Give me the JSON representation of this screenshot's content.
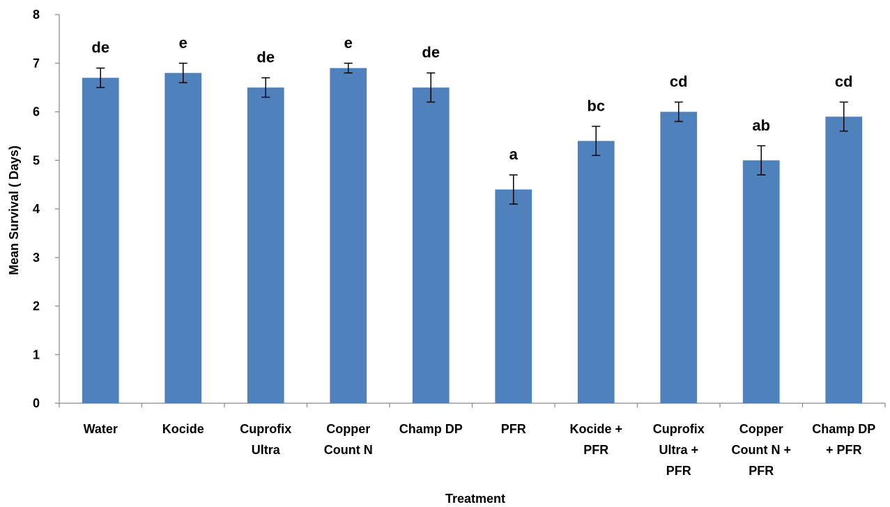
{
  "chart_data": {
    "type": "bar",
    "xlabel": "Treatment",
    "ylabel": "Mean Survival ( Days)",
    "ylim": [
      0,
      8
    ],
    "yticks": [
      0,
      1,
      2,
      3,
      4,
      5,
      6,
      7,
      8
    ],
    "grid": false,
    "bar_color": "#4f81bd",
    "categories": [
      [
        "Water"
      ],
      [
        "Kocide"
      ],
      [
        "Cuprofix",
        "Ultra"
      ],
      [
        "Copper",
        "Count N"
      ],
      [
        "Champ DP"
      ],
      [
        "PFR"
      ],
      [
        "Kocide +",
        "PFR"
      ],
      [
        "Cuprofix",
        "Ultra +",
        "PFR"
      ],
      [
        "Copper",
        "Count N +",
        "PFR"
      ],
      [
        "Champ DP",
        "+ PFR"
      ]
    ],
    "values": [
      6.7,
      6.8,
      6.5,
      6.9,
      6.5,
      4.4,
      5.4,
      6.0,
      5.0,
      5.9
    ],
    "errors": [
      0.2,
      0.2,
      0.2,
      0.1,
      0.3,
      0.3,
      0.3,
      0.2,
      0.3,
      0.3
    ],
    "letters": [
      "de",
      "e",
      "de",
      "e",
      "de",
      "a",
      "bc",
      "cd",
      "ab",
      "cd"
    ]
  }
}
